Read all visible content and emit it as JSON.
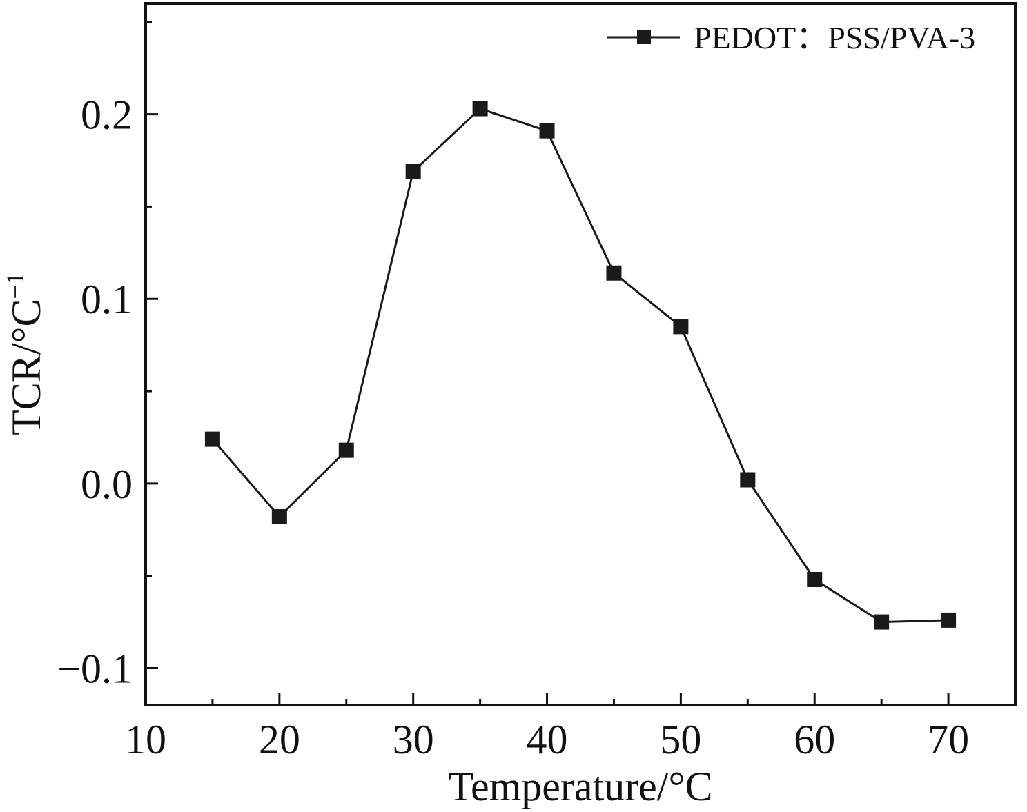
{
  "chart_data": {
    "type": "line",
    "title": "",
    "xlabel": "Temperature/°C",
    "ylabel": "TCR/°C",
    "ylabel_superscript": "−1",
    "xlim": [
      10,
      75
    ],
    "ylim": [
      -0.12,
      0.26
    ],
    "xticks": [
      10,
      20,
      30,
      40,
      50,
      60,
      70
    ],
    "xtick_labels": [
      "10",
      "20",
      "30",
      "40",
      "50",
      "60",
      "70"
    ],
    "yticks": [
      -0.1,
      0.0,
      0.1,
      0.2
    ],
    "ytick_labels": [
      "−0.1",
      "0.0",
      "0.1",
      "0.2"
    ],
    "grid": false,
    "legend_position": "top-right",
    "series": [
      {
        "name": "PEDOT：PSS/PVA-3",
        "marker": "square",
        "color": "#1a1a1a",
        "x": [
          15,
          20,
          25,
          30,
          35,
          40,
          45,
          50,
          55,
          60,
          65,
          70
        ],
        "y": [
          0.024,
          -0.018,
          0.018,
          0.169,
          0.203,
          0.191,
          0.114,
          0.085,
          0.002,
          -0.052,
          -0.075,
          -0.074
        ]
      }
    ]
  }
}
